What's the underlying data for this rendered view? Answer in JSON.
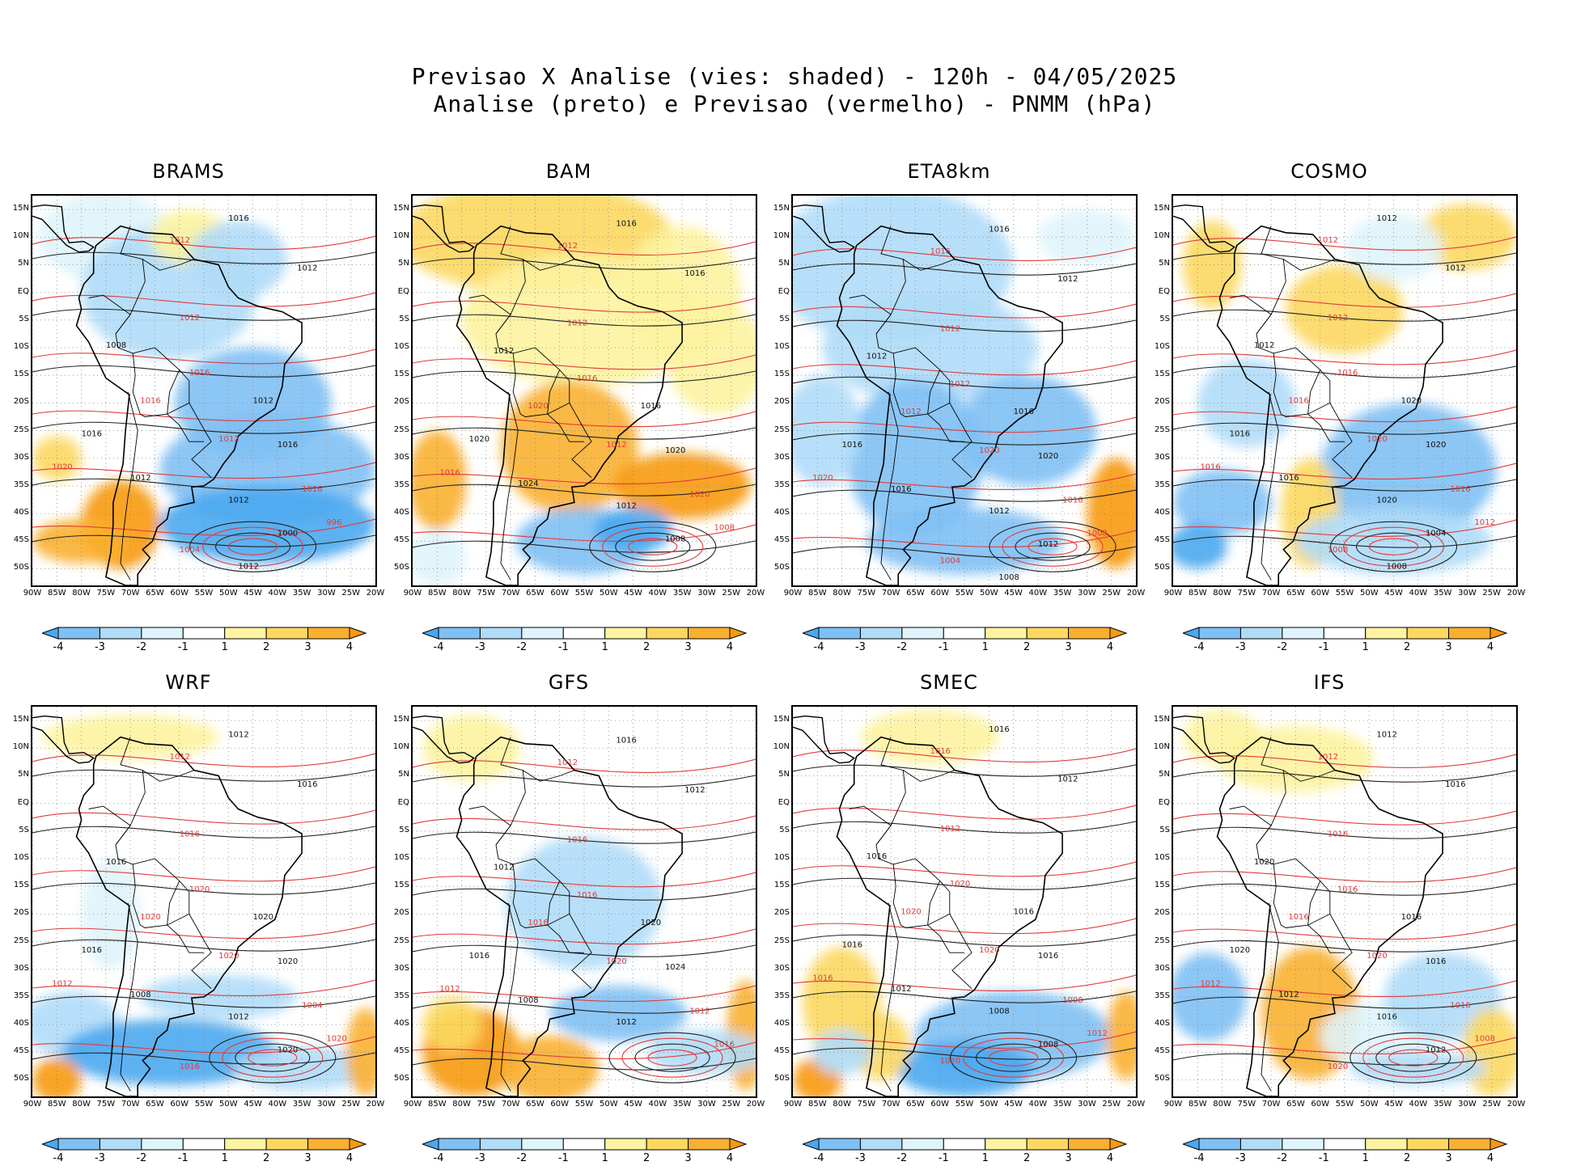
{
  "title_line1": "Previsao X Analise (vies: shaded) - 120h - 04/05/2025",
  "title_line2": "Analise (preto) e Previsao (vermelho) - PNMM (hPa)",
  "lat_labels": [
    "15N",
    "10N",
    "5N",
    "EQ",
    "5S",
    "10S",
    "15S",
    "20S",
    "25S",
    "30S",
    "35S",
    "40S",
    "45S",
    "50S"
  ],
  "lon_labels": [
    "90W",
    "85W",
    "80W",
    "75W",
    "70W",
    "65W",
    "60W",
    "55W",
    "50W",
    "45W",
    "40W",
    "35W",
    "30W",
    "25W",
    "20W"
  ],
  "colorbar": {
    "labels": [
      "-4",
      "-3",
      "-2",
      "-1",
      "1",
      "2",
      "3",
      "4"
    ],
    "colors": [
      "#4aa8f0",
      "#7fc0f4",
      "#b0dcf8",
      "#dff4fb",
      "#ffffff",
      "#fdf3a0",
      "#fcd860",
      "#f9b030",
      "#f79a10"
    ]
  },
  "panels": [
    {
      "name": "BRAMS",
      "isobars": [
        "1016",
        "1012",
        "1012",
        "1012",
        "1008",
        "1016",
        "1012",
        "1016",
        "1016",
        "1012",
        "1016",
        "1020",
        "1012",
        "1016",
        "1012",
        "996",
        "1000",
        "1004",
        "1012"
      ]
    },
    {
      "name": "BAM",
      "isobars": [
        "1016",
        "1012",
        "1016",
        "1012",
        "1012",
        "1016",
        "1016",
        "1020",
        "1020",
        "1012",
        "1020",
        "1016",
        "1024",
        "1020",
        "1012",
        "1008",
        "1008"
      ]
    },
    {
      "name": "ETA8km",
      "isobars": [
        "1016",
        "1016",
        "1012",
        "1012",
        "1012",
        "1012",
        "1016",
        "1012",
        "1016",
        "1020",
        "1020",
        "1020",
        "1016",
        "1016",
        "1012",
        "1008",
        "1012",
        "1004",
        "1008"
      ]
    },
    {
      "name": "COSMO",
      "isobars": [
        "1012",
        "1012",
        "1012",
        "1012",
        "1012",
        "1016",
        "1020",
        "1016",
        "1016",
        "1020",
        "1020",
        "1016",
        "1016",
        "1016",
        "1020",
        "1012",
        "1004",
        "1008",
        "1008"
      ]
    },
    {
      "name": "WRF",
      "isobars": [
        "1012",
        "1012",
        "1016",
        "1016",
        "1016",
        "1020",
        "1020",
        "1020",
        "1016",
        "1020",
        "1020",
        "1012",
        "1008",
        "1004",
        "1012",
        "1020",
        "1020",
        "1016"
      ]
    },
    {
      "name": "GFS",
      "isobars": [
        "1016",
        "1012",
        "1012",
        "1016",
        "1012",
        "1016",
        "1020",
        "1016",
        "1016",
        "1020",
        "1024",
        "1012",
        "1008",
        "1012",
        "1012",
        "1016"
      ]
    },
    {
      "name": "SMEC",
      "isobars": [
        "1016",
        "1016",
        "1012",
        "1012",
        "1016",
        "1020",
        "1016",
        "1020",
        "1016",
        "1020",
        "1016",
        "1016",
        "1012",
        "1008",
        "1008",
        "1012",
        "1008",
        "1020"
      ]
    },
    {
      "name": "IFS",
      "isobars": [
        "1012",
        "1012",
        "1016",
        "1016",
        "1020",
        "1016",
        "1016",
        "1016",
        "1020",
        "1020",
        "1016",
        "1012",
        "1012",
        "1016",
        "1016",
        "1008",
        "1012",
        "1020"
      ]
    }
  ]
}
